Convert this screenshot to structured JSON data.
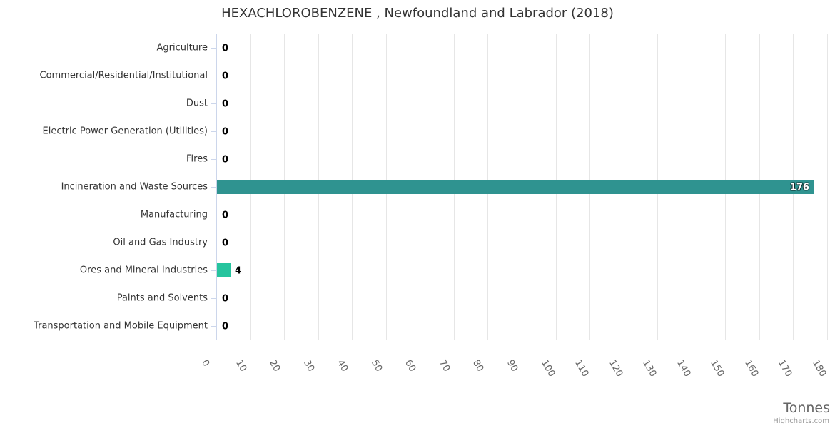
{
  "title": "HEXACHLOROBENZENE , Newfoundland and Labrador (2018)",
  "x_axis": {
    "title": "Tonnes",
    "tick_labels": [
      "0",
      "10",
      "20",
      "30",
      "40",
      "50",
      "60",
      "70",
      "80",
      "90",
      "100",
      "110",
      "120",
      "130",
      "140",
      "150",
      "160",
      "170",
      "180"
    ]
  },
  "credits": "Highcharts.com",
  "colors": {
    "bar_teal": "#2f9390",
    "bar_green": "#26c49e",
    "grid": "#e6e6e6",
    "axis_line": "#ccd6eb",
    "category_label": "#333333",
    "tick_label": "#666666"
  },
  "chart_data": {
    "type": "bar",
    "orientation": "horizontal",
    "title": "HEXACHLOROBENZENE , Newfoundland and Labrador (2018)",
    "categories": [
      "Agriculture",
      "Commercial/Residential/Institutional",
      "Dust",
      "Electric Power Generation (Utilities)",
      "Fires",
      "Incineration and Waste Sources",
      "Manufacturing",
      "Oil and Gas Industry",
      "Ores and Mineral Industries",
      "Paints and Solvents",
      "Transportation and Mobile Equipment"
    ],
    "values": [
      0,
      0,
      0,
      0,
      0,
      176,
      0,
      0,
      4,
      0,
      0
    ],
    "data_labels": [
      "0",
      "0",
      "0",
      "0",
      "0",
      "176",
      "0",
      "0",
      "4",
      "0",
      "0"
    ],
    "point_colors": [
      null,
      null,
      null,
      null,
      null,
      "#2f9390",
      null,
      null,
      "#26c49e",
      null,
      null
    ],
    "xlabel": "Tonnes",
    "ylabel": "",
    "xlim": [
      0,
      180
    ],
    "tick_interval": 10,
    "grid": true,
    "legend": "none"
  }
}
